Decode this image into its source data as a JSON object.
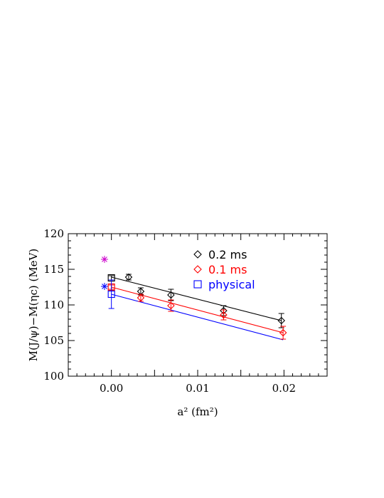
{
  "chart_data": {
    "type": "scatter",
    "xlabel": "a² (fm²)",
    "ylabel": "M(J/ψ)−M(ηc) (MeV)",
    "xlim": [
      -0.005,
      0.025
    ],
    "ylim": [
      100,
      120
    ],
    "x_ticks": [
      0.0,
      0.01,
      0.02
    ],
    "x_tick_labels": [
      "0.00",
      "0.01",
      "0.02"
    ],
    "y_ticks": [
      100,
      105,
      110,
      115,
      120
    ],
    "y_tick_labels": [
      "100",
      "105",
      "110",
      "115",
      "120"
    ],
    "grid": false,
    "legend_position": "top-right",
    "series": [
      {
        "name": "0.2 ms",
        "color": "#000000",
        "marker": "diamond",
        "points": [
          {
            "x": 0.002,
            "y": 113.9,
            "err": 0.4
          },
          {
            "x": 0.0034,
            "y": 111.9,
            "err": 0.5
          },
          {
            "x": 0.0069,
            "y": 111.4,
            "err": 0.8
          },
          {
            "x": 0.013,
            "y": 109.2,
            "err": 0.7
          },
          {
            "x": 0.0197,
            "y": 107.8,
            "err": 1.0
          }
        ],
        "fit": {
          "x": [
            0.0,
            0.0197
          ],
          "y": [
            113.9,
            107.8
          ]
        },
        "continuum": {
          "x": 0.0,
          "y": 113.8,
          "err": 0.3
        }
      },
      {
        "name": "0.1 ms",
        "color": "#ff0000",
        "marker": "diamond",
        "points": [
          {
            "x": 0.0034,
            "y": 111.0,
            "err": 0.5
          },
          {
            "x": 0.0069,
            "y": 109.9,
            "err": 0.8
          },
          {
            "x": 0.013,
            "y": 108.6,
            "err": 0.7
          },
          {
            "x": 0.0199,
            "y": 106.1,
            "err": 0.9
          }
        ],
        "fit": {
          "x": [
            0.0,
            0.0199
          ],
          "y": [
            112.5,
            106.1
          ]
        },
        "continuum": {
          "x": 0.0,
          "y": 112.5,
          "err": 0.3
        }
      },
      {
        "name": "physical",
        "color": "#0000ff",
        "marker": "square",
        "points": [],
        "fit": {
          "x": [
            0.0,
            0.0199
          ],
          "y": [
            111.5,
            105.1
          ]
        },
        "continuum": {
          "x": 0.0,
          "y": 111.5,
          "err": 2.0
        }
      }
    ],
    "extra_markers": [
      {
        "x": -0.0008,
        "y": 116.4,
        "color": "#cc00cc",
        "marker": "asterisk"
      },
      {
        "x": -0.0008,
        "y": 112.6,
        "color": "#0000ff",
        "marker": "asterisk"
      }
    ]
  }
}
